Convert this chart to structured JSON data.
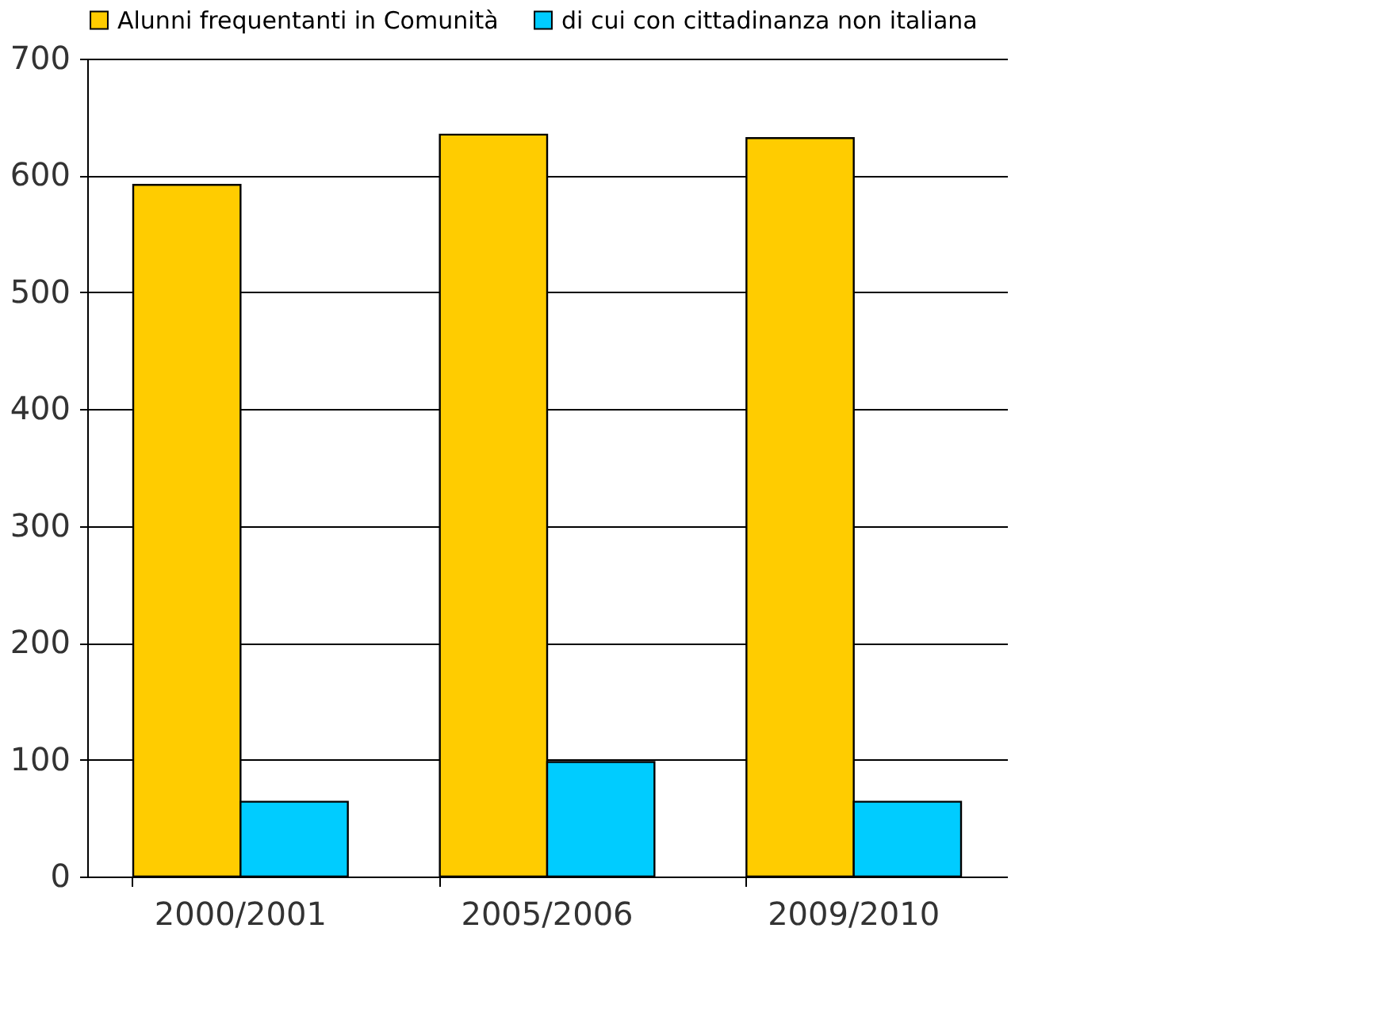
{
  "chart_data": {
    "type": "bar",
    "categories": [
      "2000/2001",
      "2005/2006",
      "2009/2010"
    ],
    "series": [
      {
        "name": "Alunni frequentanti in Comunità",
        "color": "#ffcc00",
        "values": [
          592,
          635,
          632
        ]
      },
      {
        "name": "di cui con cittadinanza non italiana",
        "color": "#00ccff",
        "values": [
          64,
          98,
          64
        ]
      }
    ],
    "ylim": [
      0,
      700
    ],
    "yticks": [
      0,
      100,
      200,
      300,
      400,
      500,
      600,
      700
    ],
    "grid": "y",
    "legend": "top"
  }
}
